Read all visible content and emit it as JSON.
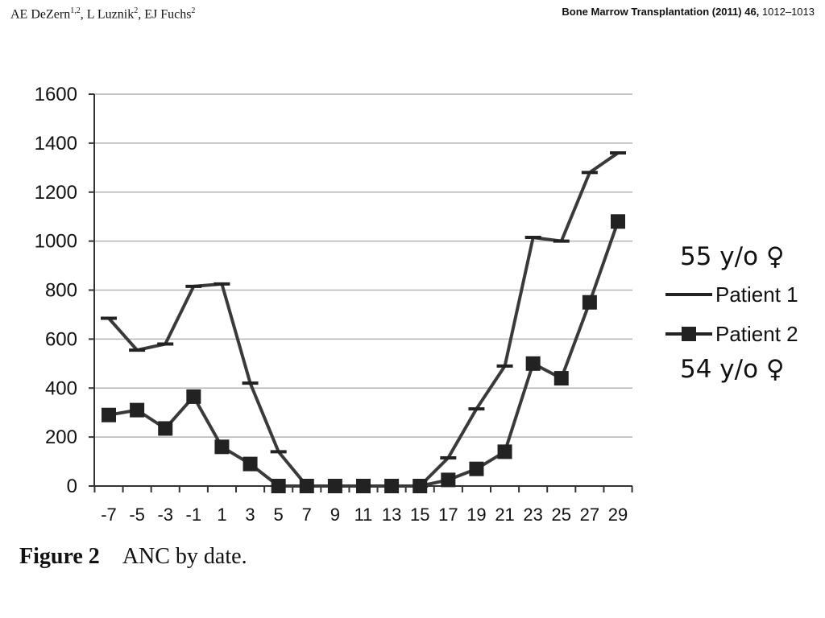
{
  "header": {
    "authors": [
      {
        "name": "AE DeZern",
        "sup": "1,2"
      },
      {
        "name": "L Luznik",
        "sup": "2"
      },
      {
        "name": "EJ Fuchs",
        "sup": "2"
      }
    ],
    "journal_name": "Bone Marrow Transplantation (2011) 46,",
    "pages": "1012–1013"
  },
  "caption": {
    "label": "Figure 2",
    "text": "ANC by date."
  },
  "chart_data": {
    "type": "line",
    "title": "",
    "xlabel": "",
    "ylabel": "",
    "x": [
      -7,
      -5,
      -3,
      -1,
      1,
      3,
      5,
      7,
      9,
      11,
      13,
      15,
      17,
      19,
      21,
      23,
      25,
      27,
      29
    ],
    "x_ticks": [
      -7,
      -5,
      -3,
      -1,
      1,
      3,
      5,
      7,
      9,
      11,
      13,
      15,
      17,
      19,
      21,
      23,
      25,
      27,
      29
    ],
    "y_ticks": [
      0,
      200,
      400,
      600,
      800,
      1000,
      1200,
      1400,
      1600
    ],
    "xlim": [
      -7,
      29
    ],
    "ylim": [
      0,
      1600
    ],
    "grid": true,
    "legend_position": "right",
    "series": [
      {
        "name": "Patient 1",
        "note": "55 y/o ♀",
        "marker": "dash",
        "color": "#3a3a3a",
        "values": [
          685,
          555,
          580,
          815,
          825,
          420,
          140,
          0,
          0,
          0,
          0,
          0,
          115,
          315,
          490,
          1015,
          1000,
          1280,
          1360
        ]
      },
      {
        "name": "Patient 2",
        "note": "54 y/o ♀",
        "marker": "square",
        "color": "#3a3a3a",
        "values": [
          290,
          310,
          235,
          365,
          160,
          90,
          0,
          0,
          0,
          0,
          0,
          0,
          25,
          70,
          140,
          500,
          440,
          750,
          1080
        ]
      }
    ]
  }
}
